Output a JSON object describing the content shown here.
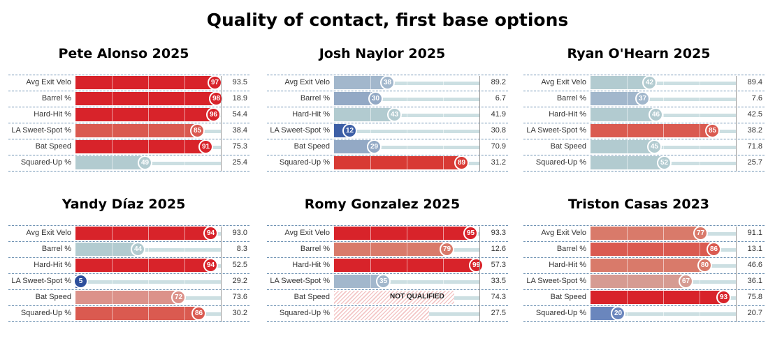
{
  "title": "Quality of contact, first base options",
  "chart_data": {
    "type": "bar",
    "title": "Quality of contact, first base options",
    "metrics": [
      "Avg Exit Velo",
      "Barrel %",
      "Hard-Hit %",
      "LA Sweet-Spot %",
      "Bat Speed",
      "Squared-Up %"
    ],
    "xlim": [
      0,
      100
    ],
    "panels": [
      {
        "title": "Pete Alonso 2025",
        "percentiles": [
          97,
          98,
          96,
          85,
          91,
          49
        ],
        "values": [
          "93.5",
          "18.9",
          "54.4",
          "38.4",
          "75.3",
          "25.4"
        ],
        "bar_colors": [
          "#d8232a",
          "#d8232a",
          "#d8232a",
          "#da5a50",
          "#d8232a",
          "#b2cbd0"
        ],
        "qualified": [
          true,
          true,
          true,
          true,
          true,
          true
        ]
      },
      {
        "title": "Josh Naylor 2025",
        "percentiles": [
          38,
          30,
          43,
          12,
          29,
          89
        ],
        "values": [
          "89.2",
          "6.7",
          "41.9",
          "30.8",
          "70.9",
          "31.2"
        ],
        "bar_colors": [
          "#a2b7cc",
          "#93a9c5",
          "#b2cbd0",
          "#3d5fa6",
          "#93a9c5",
          "#d83a34"
        ],
        "qualified": [
          true,
          true,
          true,
          true,
          true,
          true
        ]
      },
      {
        "title": "Ryan O'Hearn 2025",
        "percentiles": [
          42,
          37,
          46,
          85,
          45,
          52
        ],
        "values": [
          "89.4",
          "7.6",
          "42.5",
          "38.2",
          "71.8",
          "25.7"
        ],
        "bar_colors": [
          "#b2cbd0",
          "#a2b7cc",
          "#b2cbd0",
          "#da5a50",
          "#b2cbd0",
          "#b2cbd0"
        ],
        "qualified": [
          true,
          true,
          true,
          true,
          true,
          true
        ]
      },
      {
        "title": "Yandy Díaz 2025",
        "percentiles": [
          94,
          44,
          94,
          5,
          72,
          86
        ],
        "values": [
          "93.0",
          "8.3",
          "52.5",
          "29.2",
          "73.6",
          "30.2"
        ],
        "bar_colors": [
          "#d8232a",
          "#b2cbd0",
          "#d8232a",
          "#2e4f9c",
          "#dc928a",
          "#da5a50"
        ],
        "qualified": [
          true,
          true,
          true,
          true,
          true,
          true
        ]
      },
      {
        "title": "Romy Gonzalez 2025",
        "percentiles": [
          95,
          79,
          99,
          35,
          null,
          null
        ],
        "values": [
          "93.3",
          "12.6",
          "57.3",
          "33.5",
          "74.3",
          "27.5"
        ],
        "bar_colors": [
          "#d8232a",
          "#d97a6a",
          "#d8232a",
          "#a2b7cc",
          "#f3c6c6",
          "#f3c6c6"
        ],
        "qualified": [
          true,
          true,
          true,
          true,
          false,
          false
        ],
        "not_qualified_label": "NOT QUALIFIED"
      },
      {
        "title": "Triston Casas 2023",
        "percentiles": [
          77,
          86,
          80,
          67,
          93,
          20
        ],
        "values": [
          "91.1",
          "13.1",
          "46.6",
          "36.1",
          "75.8",
          "20.7"
        ],
        "bar_colors": [
          "#d97a6a",
          "#da5a50",
          "#d97a6a",
          "#d69b92",
          "#d8232a",
          "#6a86bd"
        ],
        "qualified": [
          true,
          true,
          true,
          true,
          true,
          true
        ]
      }
    ]
  }
}
